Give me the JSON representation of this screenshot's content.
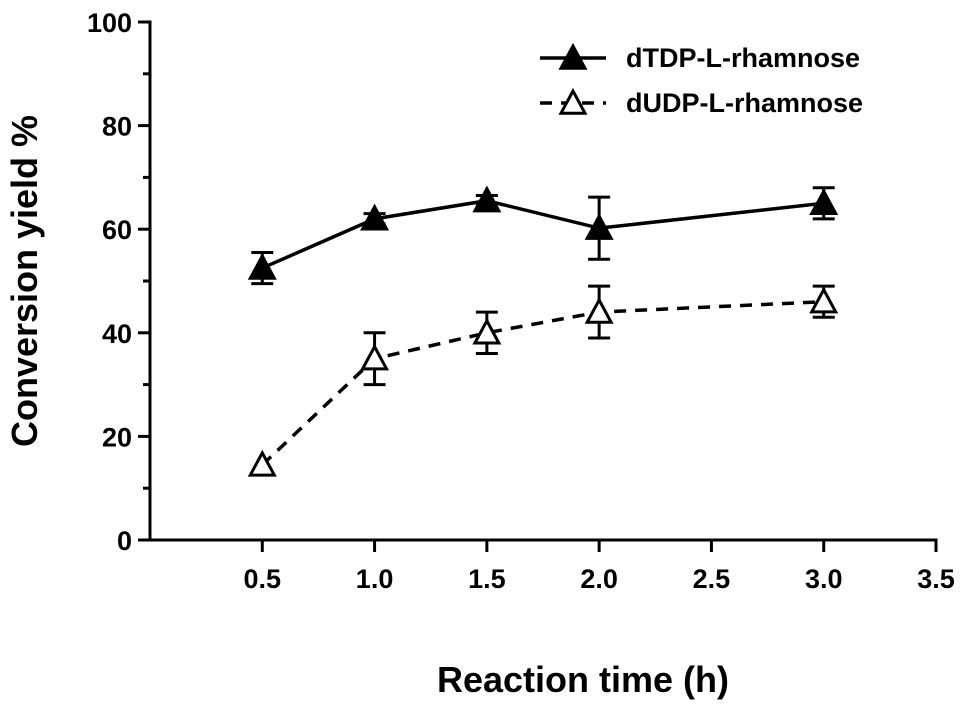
{
  "chart_data": {
    "type": "line",
    "title": "",
    "xlabel": "Reaction time (h)",
    "ylabel": "Conversion yield %",
    "xlim": [
      0,
      3.5
    ],
    "ylim": [
      0,
      100
    ],
    "x_ticks": [
      0.5,
      1.0,
      1.5,
      2.0,
      2.5,
      3.0,
      3.5
    ],
    "x_tick_labels": [
      "0.5",
      "1.0",
      "1.5",
      "2.0",
      "2.5",
      "3.0",
      "3.5"
    ],
    "y_ticks": [
      0,
      20,
      40,
      60,
      80,
      100
    ],
    "y_tick_labels": [
      "0",
      "20",
      "40",
      "60",
      "80",
      "100"
    ],
    "grid": false,
    "legend_position": "top-right",
    "series": [
      {
        "name": "dTDP-L-rhamnose",
        "line_style": "solid",
        "marker": "filled-triangle",
        "x": [
          0.5,
          1.0,
          1.5,
          2.0,
          3.0
        ],
        "y": [
          52.5,
          62,
          65.5,
          60.2,
          65
        ],
        "error": [
          3,
          1,
          1,
          6,
          3
        ]
      },
      {
        "name": "dUDP-L-rhamnose",
        "line_style": "dashed",
        "marker": "open-triangle",
        "x": [
          0.5,
          1.0,
          1.5,
          2.0,
          3.0
        ],
        "y": [
          14.5,
          35,
          40,
          44,
          46
        ],
        "error": [
          0.5,
          5,
          4,
          5,
          3
        ]
      }
    ]
  }
}
